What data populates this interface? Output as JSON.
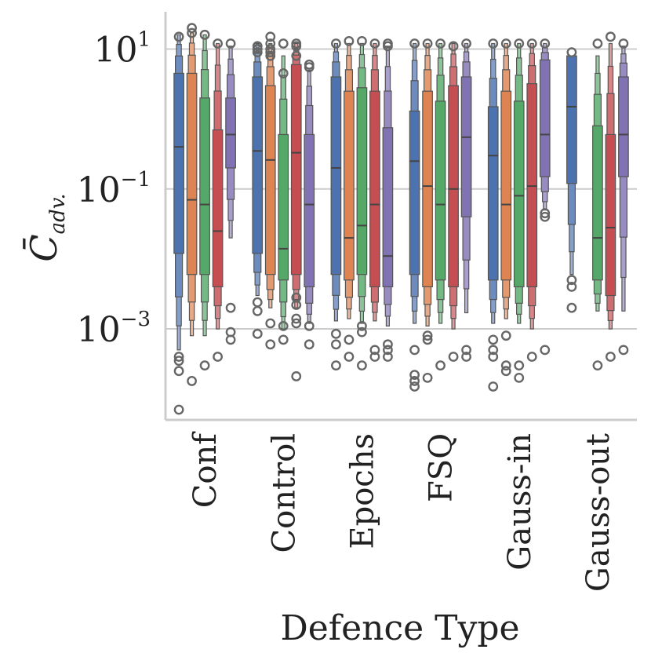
{
  "chart_data": {
    "type": "boxen",
    "title": "",
    "xlabel": "Defence Type",
    "ylabel": "C̄adv.",
    "ylabel_main": "C̄",
    "ylabel_sub": "adv.",
    "yscale": "log",
    "ylim": [
      5e-05,
      30
    ],
    "yticks": [
      {
        "value": 10,
        "base": "10",
        "exp": "1"
      },
      {
        "value": 0.1,
        "base": "10",
        "exp": "−1"
      },
      {
        "value": 0.001,
        "base": "10",
        "exp": "−3"
      }
    ],
    "grid": "horizontal",
    "categories": [
      "Conf",
      "Control",
      "Epochs",
      "FSQ",
      "Gauss-in",
      "Gauss-out"
    ],
    "series_colors": [
      "#4c72b0",
      "#dd8452",
      "#55a868",
      "#c44e52",
      "#8172b3"
    ],
    "groups": [
      {
        "category": "Conf",
        "boxes": [
          {
            "series": 0,
            "q1": 0.012,
            "median": 0.4,
            "q3": 4.5,
            "lo": 0.0005,
            "hi": 16,
            "outliers": [
              0.0004,
              0.00035,
              0.00025,
              7e-05,
              15
            ]
          },
          {
            "series": 1,
            "q1": 0.006,
            "median": 0.07,
            "q3": 4.5,
            "lo": 0.0008,
            "hi": 17,
            "outliers": [
              0.00018,
              20,
              17
            ]
          },
          {
            "series": 2,
            "q1": 0.006,
            "median": 0.06,
            "q3": 2.0,
            "lo": 0.0008,
            "hi": 16,
            "outliers": [
              0.0003,
              16
            ]
          },
          {
            "series": 3,
            "q1": 0.004,
            "median": 0.025,
            "q3": 0.7,
            "lo": 0.001,
            "hi": 12,
            "outliers": [
              0.0004,
              12
            ]
          },
          {
            "series": 4,
            "q1": 0.2,
            "median": 0.6,
            "q3": 2.0,
            "lo": 0.02,
            "hi": 11,
            "outliers": [
              0.002,
              0.0007,
              0.0009,
              12
            ]
          }
        ]
      },
      {
        "category": "Control",
        "boxes": [
          {
            "series": 0,
            "q1": 0.012,
            "median": 0.35,
            "q3": 4.0,
            "lo": 0.003,
            "hi": 12,
            "outliers": [
              0.0024,
              0.0018,
              0.00085,
              9,
              10,
              11
            ]
          },
          {
            "series": 1,
            "q1": 0.006,
            "median": 0.26,
            "q3": 3.0,
            "lo": 0.002,
            "hi": 12,
            "outliers": [
              0.0012,
              0.0006,
              8,
              9,
              10,
              12,
              15
            ]
          },
          {
            "series": 2,
            "q1": 0.005,
            "median": 0.014,
            "q3": 0.6,
            "lo": 0.001,
            "hi": 8,
            "outliers": [
              0.0011,
              0.0007,
              4.5,
              12
            ]
          },
          {
            "series": 3,
            "q1": 0.006,
            "median": 0.33,
            "q3": 6.0,
            "lo": 0.002,
            "hi": 12,
            "outliers": [
              0.0014,
              0.0012,
              0.0022,
              0.0028,
              0.00021,
              8,
              11,
              12
            ]
          },
          {
            "series": 4,
            "q1": 0.004,
            "median": 0.06,
            "q3": 0.6,
            "lo": 0.0012,
            "hi": 5,
            "outliers": [
              0.0011,
              0.0006,
              5.5,
              6
            ]
          }
        ]
      },
      {
        "category": "Epochs",
        "boxes": [
          {
            "series": 0,
            "q1": 0.006,
            "median": 0.2,
            "q3": 4.0,
            "lo": 0.0013,
            "hi": 12,
            "outliers": [
              0.00085,
              0.0006,
              0.0003,
              12
            ]
          },
          {
            "series": 1,
            "q1": 0.005,
            "median": 0.02,
            "q3": 2.5,
            "lo": 0.0014,
            "hi": 12,
            "outliers": [
              0.0007,
              0.0004,
              13
            ]
          },
          {
            "series": 2,
            "q1": 0.006,
            "median": 0.03,
            "q3": 2.8,
            "lo": 0.0012,
            "hi": 12,
            "outliers": [
              0.0011,
              0.0009,
              0.0003,
              13
            ]
          },
          {
            "series": 3,
            "q1": 0.004,
            "median": 0.06,
            "q3": 2.5,
            "lo": 0.0013,
            "hi": 12,
            "outliers": [
              0.0005,
              0.0004,
              12
            ]
          },
          {
            "series": 4,
            "q1": 0.004,
            "median": 0.011,
            "q3": 0.75,
            "lo": 0.0011,
            "hi": 11,
            "outliers": [
              0.0005,
              0.0006,
              0.0004,
              11,
              12
            ]
          }
        ]
      },
      {
        "category": "FSQ",
        "boxes": [
          {
            "series": 0,
            "q1": 0.006,
            "median": 0.25,
            "q3": 1.3,
            "lo": 0.0012,
            "hi": 12,
            "outliers": [
              0.0005,
              0.00022,
              0.00018,
              0.00015,
              12
            ]
          },
          {
            "series": 1,
            "q1": 0.004,
            "median": 0.11,
            "q3": 2.5,
            "lo": 0.0011,
            "hi": 12,
            "outliers": [
              0.0008,
              0.0007,
              0.0002,
              12
            ]
          },
          {
            "series": 2,
            "q1": 0.005,
            "median": 0.06,
            "q3": 1.8,
            "lo": 0.0012,
            "hi": 12,
            "outliers": [
              0.0003,
              12
            ]
          },
          {
            "series": 3,
            "q1": 0.004,
            "median": 0.1,
            "q3": 3.0,
            "lo": 0.001,
            "hi": 12,
            "outliers": [
              0.0004,
              11
            ]
          },
          {
            "series": 4,
            "q1": 0.04,
            "median": 0.55,
            "q3": 4.0,
            "lo": 0.0017,
            "hi": 12,
            "outliers": [
              0.0005,
              0.0004,
              12
            ]
          }
        ]
      },
      {
        "category": "Gauss-in",
        "boxes": [
          {
            "series": 0,
            "q1": 0.005,
            "median": 0.3,
            "q3": 1.5,
            "lo": 0.0012,
            "hi": 12,
            "outliers": [
              0.0007,
              0.0005,
              0.0004,
              0.00015,
              12
            ]
          },
          {
            "series": 1,
            "q1": 0.005,
            "median": 0.06,
            "q3": 2.5,
            "lo": 0.0014,
            "hi": 12,
            "outliers": [
              0.0008,
              0.0003,
              0.00025,
              12
            ]
          },
          {
            "series": 2,
            "q1": 0.004,
            "median": 0.08,
            "q3": 1.8,
            "lo": 0.0012,
            "hi": 12,
            "outliers": [
              0.0003,
              0.0002,
              12
            ]
          },
          {
            "series": 3,
            "q1": 0.004,
            "median": 0.11,
            "q3": 3.2,
            "lo": 0.001,
            "hi": 12,
            "outliers": [
              0.0004,
              12
            ]
          },
          {
            "series": 4,
            "q1": 0.15,
            "median": 0.6,
            "q3": 7.0,
            "lo": 0.05,
            "hi": 12,
            "outliers": [
              0.04,
              0.045,
              0.0005,
              12
            ]
          }
        ]
      },
      {
        "category": "Gauss-out",
        "boxes": [
          {
            "series": 0,
            "q1": 0.12,
            "median": 1.5,
            "q3": 8.0,
            "lo": 0.006,
            "hi": 8,
            "outliers": [
              0.005,
              0.004,
              0.002,
              9
            ]
          },
          {
            "series": 2,
            "q1": 0.005,
            "median": 0.02,
            "q3": 0.8,
            "lo": 0.0018,
            "hi": 8,
            "outliers": [
              0.0003,
              12
            ]
          },
          {
            "series": 3,
            "q1": 0.003,
            "median": 0.028,
            "q3": 0.6,
            "lo": 0.001,
            "hi": 12,
            "outliers": [
              0.0004,
              15
            ]
          },
          {
            "series": 4,
            "q1": 0.15,
            "median": 0.6,
            "q3": 4.0,
            "lo": 0.0018,
            "hi": 11,
            "outliers": [
              0.0005,
              12
            ]
          }
        ]
      }
    ]
  }
}
